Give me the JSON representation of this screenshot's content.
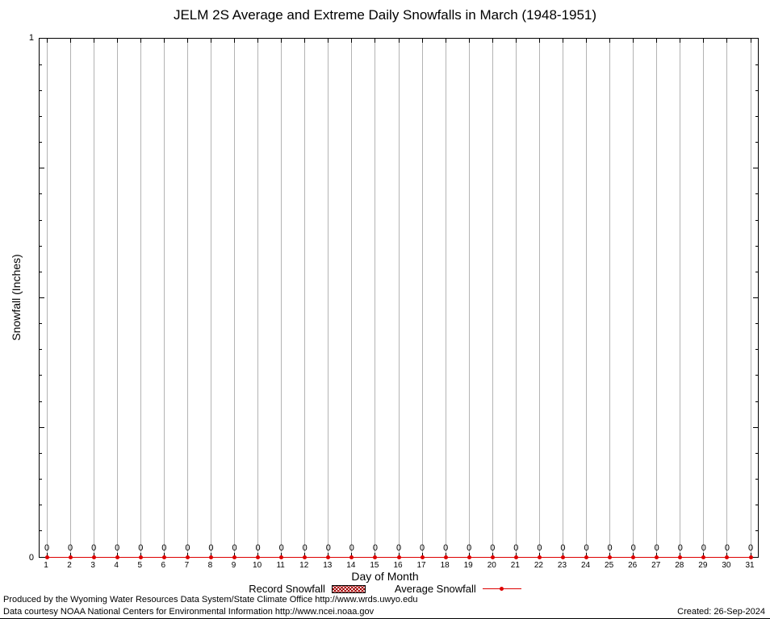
{
  "title": "JELM 2S Average and Extreme Daily Snowfalls in March (1948-1951)",
  "chart_data": {
    "type": "line",
    "title": "JELM 2S Average and Extreme Daily Snowfalls in March (1948-1951)",
    "xlabel": "Day of Month",
    "ylabel": "Snowfall (Inches)",
    "ylim": [
      0,
      1
    ],
    "ytick_labels": [
      "0",
      "1"
    ],
    "grid": "vertical-solid-gray",
    "legend_position": "bottom",
    "categories": [
      1,
      2,
      3,
      4,
      5,
      6,
      7,
      8,
      9,
      10,
      11,
      12,
      13,
      14,
      15,
      16,
      17,
      18,
      19,
      20,
      21,
      22,
      23,
      24,
      25,
      26,
      27,
      28,
      29,
      30,
      31
    ],
    "series": [
      {
        "name": "Record Snowfall",
        "values": [
          0,
          0,
          0,
          0,
          0,
          0,
          0,
          0,
          0,
          0,
          0,
          0,
          0,
          0,
          0,
          0,
          0,
          0,
          0,
          0,
          0,
          0,
          0,
          0,
          0,
          0,
          0,
          0,
          0,
          0,
          0
        ]
      },
      {
        "name": "Average Snowfall",
        "values": [
          0,
          0,
          0,
          0,
          0,
          0,
          0,
          0,
          0,
          0,
          0,
          0,
          0,
          0,
          0,
          0,
          0,
          0,
          0,
          0,
          0,
          0,
          0,
          0,
          0,
          0,
          0,
          0,
          0,
          0,
          0
        ]
      }
    ]
  },
  "legend": {
    "record_label": "Record Snowfall",
    "average_label": "Average Snowfall",
    "record_color": "#a40000",
    "average_color": "#dd0000"
  },
  "footer": {
    "line1": "Produced by the Wyoming Water Resources Data System/State Climate Office http://www.wrds.uwyo.edu",
    "line2": "Data courtesy NOAA National Centers for Environmental Information http://www.ncei.noaa.gov",
    "created": "Created: 26-Sep-2024"
  }
}
